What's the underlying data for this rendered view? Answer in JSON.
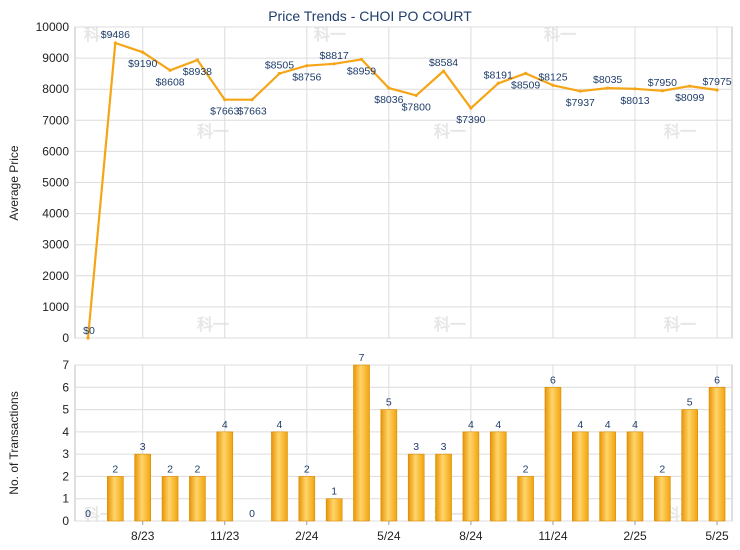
{
  "chart_data": [
    {
      "type": "line",
      "title": "Price Trends - CHOI PO COURT",
      "ylabel": "Average Price",
      "ylim": [
        0,
        10000
      ],
      "yticks": [
        0,
        1000,
        2000,
        3000,
        4000,
        5000,
        6000,
        7000,
        8000,
        9000,
        10000
      ],
      "grid": true,
      "color": "#f5a515",
      "x": [
        "2023-06",
        "2023-07",
        "2023-08",
        "2023-09",
        "2023-10",
        "2023-11",
        "2023-12",
        "2024-01",
        "2024-02",
        "2024-03",
        "2024-04",
        "2024-05",
        "2024-06",
        "2024-07",
        "2024-08",
        "2024-09",
        "2024-10",
        "2024-11",
        "2024-12",
        "2025-01",
        "2025-02",
        "2025-03",
        "2025-04",
        "2025-05"
      ],
      "values": [
        0,
        9486,
        9190,
        8608,
        8938,
        7663,
        7663,
        8505,
        8756,
        8817,
        8959,
        8036,
        7800,
        8584,
        7390,
        8191,
        8509,
        8125,
        7937,
        8035,
        8013,
        7950,
        8099,
        7975
      ],
      "labels": [
        "$0",
        "$9486",
        "$9190",
        "$8608",
        "$8938",
        "$7663",
        "$7663",
        "$8505",
        "$8756",
        "$8817",
        "$8959",
        "$8036",
        "$7800",
        "$8584",
        "$7390",
        "$8191",
        "$8509",
        "$8125",
        "$7937",
        "$8035",
        "$8013",
        "$7950",
        "$8099",
        "$7975"
      ]
    },
    {
      "type": "bar",
      "ylabel": "No. of Transactions",
      "ylim": [
        0,
        7
      ],
      "yticks": [
        0,
        1,
        2,
        3,
        4,
        5,
        6,
        7
      ],
      "grid": true,
      "color": "#f5a515",
      "x": [
        "2023-06",
        "2023-07",
        "2023-08",
        "2023-09",
        "2023-10",
        "2023-11",
        "2023-12",
        "2024-01",
        "2024-02",
        "2024-03",
        "2024-04",
        "2024-05",
        "2024-06",
        "2024-07",
        "2024-08",
        "2024-09",
        "2024-10",
        "2024-11",
        "2024-12",
        "2025-01",
        "2025-02",
        "2025-03",
        "2025-04",
        "2025-05"
      ],
      "values": [
        0,
        2,
        3,
        2,
        2,
        4,
        0,
        4,
        2,
        1,
        7,
        5,
        3,
        3,
        4,
        4,
        2,
        6,
        4,
        4,
        4,
        2,
        5,
        6
      ],
      "xtick_labels": [
        "8/23",
        "11/23",
        "2/24",
        "5/24",
        "8/24",
        "11/24",
        "2/25",
        "5/25"
      ]
    }
  ],
  "watermark": "科一"
}
